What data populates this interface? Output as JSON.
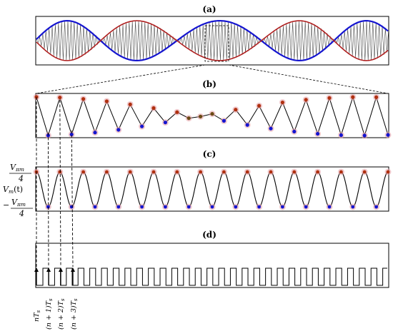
{
  "panels": {
    "a": {
      "label": "(a)"
    },
    "b": {
      "label": "(b)"
    },
    "c": {
      "label": "(c)"
    },
    "d": {
      "label": "(d)"
    }
  },
  "c_axis": {
    "top_num": "V",
    "top_num_sub": "πm",
    "top_den": "4",
    "mid": "V",
    "mid_sub": "m",
    "mid_arg": "(t)",
    "bot_minus": "−",
    "bot_num": "V",
    "bot_num_sub": "πm",
    "bot_den": "4"
  },
  "time_labels": [
    "nT",
    "(n + 1)T",
    "(n + 2)T",
    "(n + 3)T"
  ],
  "time_sub": "s",
  "colors": {
    "envelope_upper": "#1515d0",
    "envelope_lower": "#b02020",
    "sample_high": "#b03010",
    "sample_low": "#1515d0",
    "sample_mid": "#6b4a15",
    "curve": "#000000",
    "shadow": "#e6a0a8"
  }
}
